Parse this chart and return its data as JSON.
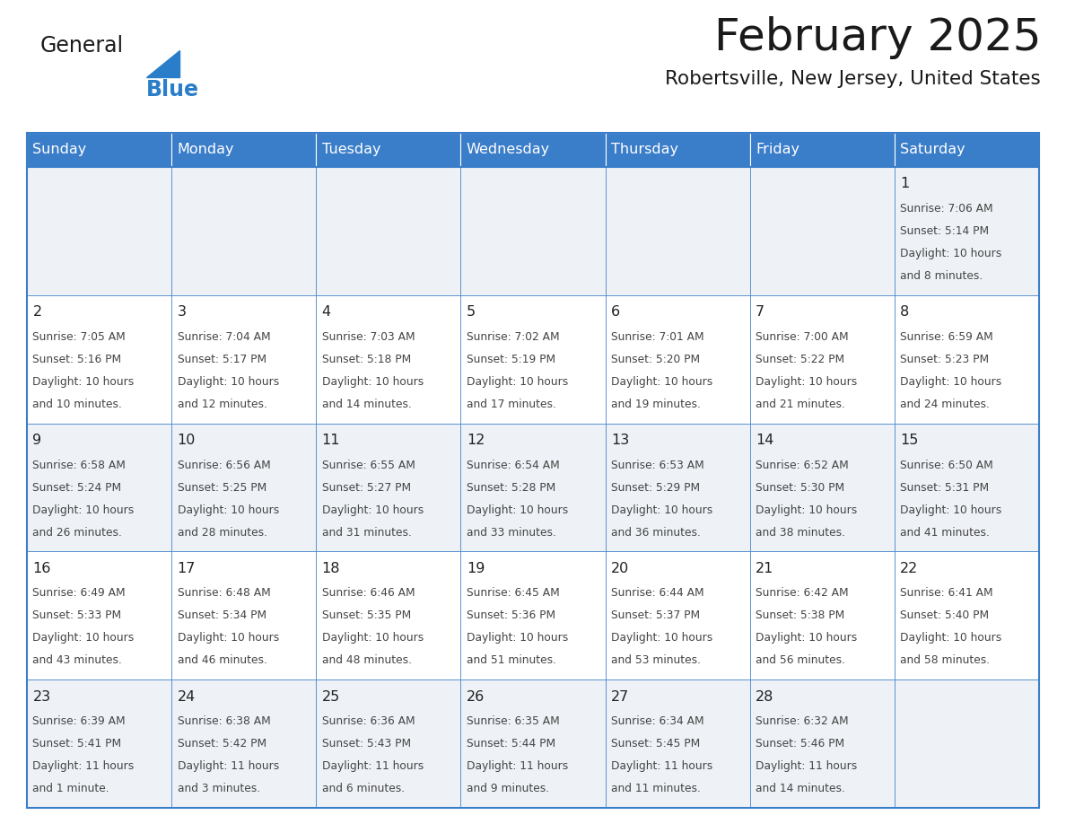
{
  "title": "February 2025",
  "subtitle": "Robertsville, New Jersey, United States",
  "header_color": "#3a7dc9",
  "header_text_color": "#ffffff",
  "cell_bg_light": "#eef2f7",
  "cell_bg_white": "#ffffff",
  "border_color": "#3a7dc9",
  "day_names": [
    "Sunday",
    "Monday",
    "Tuesday",
    "Wednesday",
    "Thursday",
    "Friday",
    "Saturday"
  ],
  "title_color": "#1a1a1a",
  "subtitle_color": "#1a1a1a",
  "day_num_color": "#222222",
  "info_color": "#444444",
  "logo_general_color": "#1a1a1a",
  "logo_blue_color": "#2a7dc9",
  "logo_triangle_color": "#2a7dc9",
  "weeks": [
    [
      {
        "day": null,
        "info": ""
      },
      {
        "day": null,
        "info": ""
      },
      {
        "day": null,
        "info": ""
      },
      {
        "day": null,
        "info": ""
      },
      {
        "day": null,
        "info": ""
      },
      {
        "day": null,
        "info": ""
      },
      {
        "day": 1,
        "info": "Sunrise: 7:06 AM\nSunset: 5:14 PM\nDaylight: 10 hours\nand 8 minutes."
      }
    ],
    [
      {
        "day": 2,
        "info": "Sunrise: 7:05 AM\nSunset: 5:16 PM\nDaylight: 10 hours\nand 10 minutes."
      },
      {
        "day": 3,
        "info": "Sunrise: 7:04 AM\nSunset: 5:17 PM\nDaylight: 10 hours\nand 12 minutes."
      },
      {
        "day": 4,
        "info": "Sunrise: 7:03 AM\nSunset: 5:18 PM\nDaylight: 10 hours\nand 14 minutes."
      },
      {
        "day": 5,
        "info": "Sunrise: 7:02 AM\nSunset: 5:19 PM\nDaylight: 10 hours\nand 17 minutes."
      },
      {
        "day": 6,
        "info": "Sunrise: 7:01 AM\nSunset: 5:20 PM\nDaylight: 10 hours\nand 19 minutes."
      },
      {
        "day": 7,
        "info": "Sunrise: 7:00 AM\nSunset: 5:22 PM\nDaylight: 10 hours\nand 21 minutes."
      },
      {
        "day": 8,
        "info": "Sunrise: 6:59 AM\nSunset: 5:23 PM\nDaylight: 10 hours\nand 24 minutes."
      }
    ],
    [
      {
        "day": 9,
        "info": "Sunrise: 6:58 AM\nSunset: 5:24 PM\nDaylight: 10 hours\nand 26 minutes."
      },
      {
        "day": 10,
        "info": "Sunrise: 6:56 AM\nSunset: 5:25 PM\nDaylight: 10 hours\nand 28 minutes."
      },
      {
        "day": 11,
        "info": "Sunrise: 6:55 AM\nSunset: 5:27 PM\nDaylight: 10 hours\nand 31 minutes."
      },
      {
        "day": 12,
        "info": "Sunrise: 6:54 AM\nSunset: 5:28 PM\nDaylight: 10 hours\nand 33 minutes."
      },
      {
        "day": 13,
        "info": "Sunrise: 6:53 AM\nSunset: 5:29 PM\nDaylight: 10 hours\nand 36 minutes."
      },
      {
        "day": 14,
        "info": "Sunrise: 6:52 AM\nSunset: 5:30 PM\nDaylight: 10 hours\nand 38 minutes."
      },
      {
        "day": 15,
        "info": "Sunrise: 6:50 AM\nSunset: 5:31 PM\nDaylight: 10 hours\nand 41 minutes."
      }
    ],
    [
      {
        "day": 16,
        "info": "Sunrise: 6:49 AM\nSunset: 5:33 PM\nDaylight: 10 hours\nand 43 minutes."
      },
      {
        "day": 17,
        "info": "Sunrise: 6:48 AM\nSunset: 5:34 PM\nDaylight: 10 hours\nand 46 minutes."
      },
      {
        "day": 18,
        "info": "Sunrise: 6:46 AM\nSunset: 5:35 PM\nDaylight: 10 hours\nand 48 minutes."
      },
      {
        "day": 19,
        "info": "Sunrise: 6:45 AM\nSunset: 5:36 PM\nDaylight: 10 hours\nand 51 minutes."
      },
      {
        "day": 20,
        "info": "Sunrise: 6:44 AM\nSunset: 5:37 PM\nDaylight: 10 hours\nand 53 minutes."
      },
      {
        "day": 21,
        "info": "Sunrise: 6:42 AM\nSunset: 5:38 PM\nDaylight: 10 hours\nand 56 minutes."
      },
      {
        "day": 22,
        "info": "Sunrise: 6:41 AM\nSunset: 5:40 PM\nDaylight: 10 hours\nand 58 minutes."
      }
    ],
    [
      {
        "day": 23,
        "info": "Sunrise: 6:39 AM\nSunset: 5:41 PM\nDaylight: 11 hours\nand 1 minute."
      },
      {
        "day": 24,
        "info": "Sunrise: 6:38 AM\nSunset: 5:42 PM\nDaylight: 11 hours\nand 3 minutes."
      },
      {
        "day": 25,
        "info": "Sunrise: 6:36 AM\nSunset: 5:43 PM\nDaylight: 11 hours\nand 6 minutes."
      },
      {
        "day": 26,
        "info": "Sunrise: 6:35 AM\nSunset: 5:44 PM\nDaylight: 11 hours\nand 9 minutes."
      },
      {
        "day": 27,
        "info": "Sunrise: 6:34 AM\nSunset: 5:45 PM\nDaylight: 11 hours\nand 11 minutes."
      },
      {
        "day": 28,
        "info": "Sunrise: 6:32 AM\nSunset: 5:46 PM\nDaylight: 11 hours\nand 14 minutes."
      },
      {
        "day": null,
        "info": ""
      }
    ]
  ]
}
